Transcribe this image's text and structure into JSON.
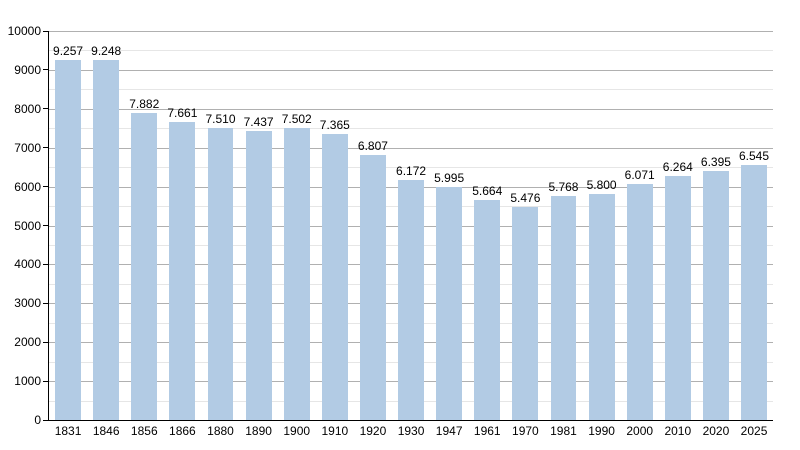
{
  "chart_data": {
    "type": "bar",
    "title": "",
    "xlabel": "",
    "ylabel": "",
    "categories": [
      "1831",
      "1846",
      "1856",
      "1866",
      "1880",
      "1890",
      "1900",
      "1910",
      "1920",
      "1930",
      "1947",
      "1961",
      "1970",
      "1981",
      "1990",
      "2000",
      "2010",
      "2020",
      "2025"
    ],
    "values": [
      9257,
      9248,
      7882,
      7661,
      7510,
      7437,
      7502,
      7365,
      6807,
      6172,
      5995,
      5664,
      5476,
      5768,
      5800,
      6071,
      6264,
      6395,
      6545
    ],
    "value_labels": [
      "9.257",
      "9.248",
      "7.882",
      "7.661",
      "7.510",
      "7.437",
      "7.502",
      "7.365",
      "6.807",
      "6.172",
      "5.995",
      "5.664",
      "5.476",
      "5.768",
      "5.800",
      "6.071",
      "6.264",
      "6.395",
      "6.545"
    ],
    "ylim": [
      0,
      10000
    ],
    "y_major_step": 1000,
    "y_minor_step": 500,
    "y_tick_labels": [
      "0",
      "1000",
      "2000",
      "3000",
      "4000",
      "5000",
      "6000",
      "7000",
      "8000",
      "9000",
      "10000"
    ],
    "grid": true,
    "legend": false,
    "colors": {
      "bar_fill": "#b2cbe4",
      "major_grid": "#b0b0b0",
      "minor_grid": "#e6e6e6",
      "axis": "#000000",
      "text": "#000000",
      "background": "#ffffff"
    }
  }
}
